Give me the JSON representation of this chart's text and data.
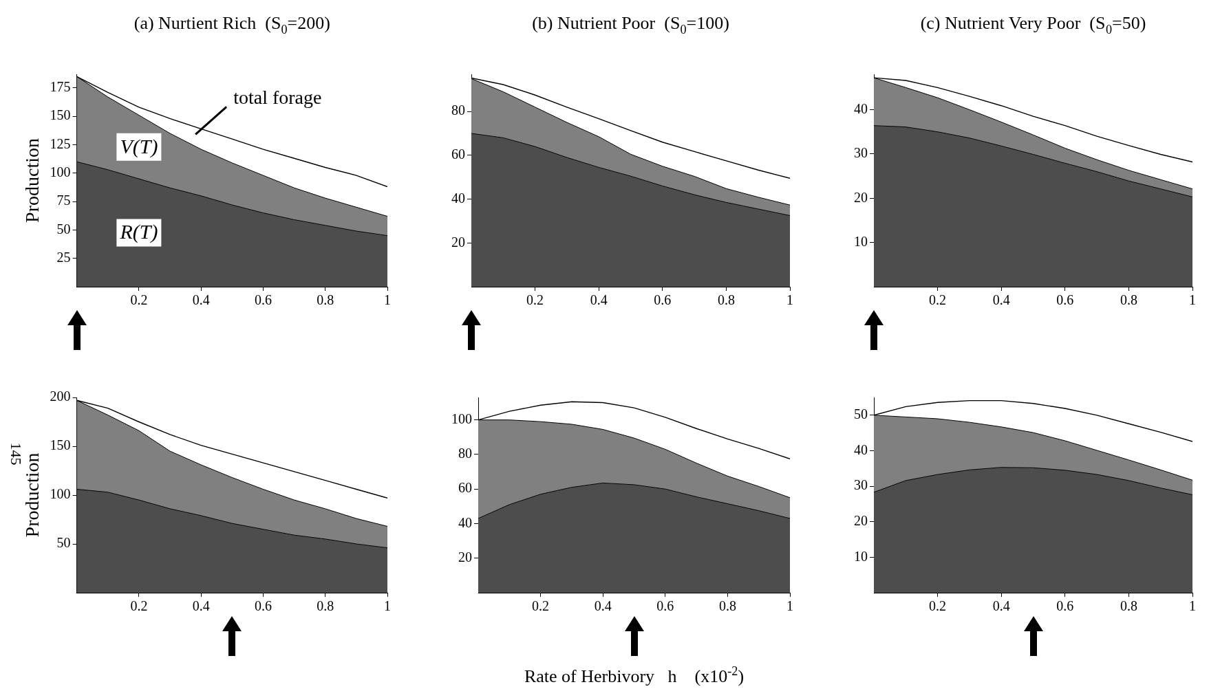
{
  "chart_data": [
    {
      "type": "area",
      "title": "(a) Nurtient Rich  (S$_{0}$=200)",
      "ylabel": "Production",
      "stacked": true,
      "x": [
        0,
        0.1,
        0.2,
        0.3,
        0.4,
        0.5,
        0.6,
        0.7,
        0.8,
        0.9,
        1
      ],
      "xlim": [
        0,
        1
      ],
      "xticks": [
        0.2,
        0.4,
        0.6,
        0.8,
        1
      ],
      "ylim": [
        0,
        187
      ],
      "yticks": [
        25,
        50,
        75,
        100,
        125,
        150,
        175
      ],
      "series": [
        {
          "name": "R(T)",
          "type": "area",
          "color": "#4d4d4d",
          "values": [
            110,
            103,
            95,
            87,
            80,
            72,
            65,
            59,
            54,
            49,
            45
          ]
        },
        {
          "name": "V(T)",
          "type": "area",
          "color": "#808080",
          "values": [
            75,
            64,
            56,
            48,
            41,
            37,
            33,
            28,
            24,
            21,
            17
          ]
        },
        {
          "name": "total forage",
          "type": "line",
          "color": "#000000",
          "values": [
            185,
            171,
            158,
            148,
            139,
            130,
            121,
            113,
            105,
            98,
            88
          ]
        }
      ]
    },
    {
      "type": "area",
      "title": "(b) Nutrient Poor  (S$_{0}$=100)",
      "stacked": true,
      "x": [
        0,
        0.1,
        0.2,
        0.3,
        0.4,
        0.5,
        0.6,
        0.7,
        0.8,
        0.9,
        1
      ],
      "xlim": [
        0,
        1
      ],
      "xticks": [
        0.2,
        0.4,
        0.6,
        0.8,
        1
      ],
      "ylim": [
        0,
        97
      ],
      "yticks": [
        20,
        40,
        60,
        80
      ],
      "series": [
        {
          "type": "area",
          "color": "#4d4d4d",
          "values": [
            70,
            68,
            64,
            59,
            54.5,
            50.5,
            46,
            42,
            38.5,
            35.5,
            32.5
          ]
        },
        {
          "type": "area",
          "color": "#808080",
          "values": [
            25,
            21,
            18,
            16,
            14,
            10,
            9,
            8.4,
            6.3,
            5.4,
            4.8
          ]
        },
        {
          "type": "line",
          "color": "#000000",
          "values": [
            95.3,
            92.3,
            87.5,
            82,
            76.7,
            71.3,
            66,
            61.7,
            57.5,
            53.3,
            49.5
          ]
        }
      ]
    },
    {
      "type": "area",
      "title": "(c) Nutrient Very Poor  (S$_{0}$=50)",
      "stacked": true,
      "x": [
        0,
        0.1,
        0.2,
        0.3,
        0.4,
        0.5,
        0.6,
        0.7,
        0.8,
        0.9,
        1
      ],
      "xlim": [
        0,
        1
      ],
      "xticks": [
        0.2,
        0.4,
        0.6,
        0.8,
        1
      ],
      "ylim": [
        0,
        48
      ],
      "yticks": [
        10,
        20,
        30,
        40
      ],
      "series": [
        {
          "type": "area",
          "color": "#4d4d4d",
          "values": [
            36.4,
            36.1,
            35,
            33.6,
            31.8,
            29.9,
            27.9,
            26,
            23.9,
            22.1,
            20.3
          ]
        },
        {
          "type": "area",
          "color": "#808080",
          "values": [
            10.8,
            8.9,
            7.7,
            6.4,
            5.4,
            4.4,
            3.4,
            2.7,
            2.4,
            2.1,
            1.8
          ]
        },
        {
          "type": "line",
          "color": "#000000",
          "values": [
            47.2,
            46.6,
            45,
            43,
            40.9,
            38.5,
            36.4,
            34,
            31.9,
            29.9,
            28.2
          ]
        }
      ]
    },
    {
      "type": "area",
      "ylabel": "Production",
      "annotations": [
        "145"
      ],
      "stacked": true,
      "x": [
        0,
        0.1,
        0.2,
        0.3,
        0.4,
        0.5,
        0.6,
        0.7,
        0.8,
        0.9,
        1
      ],
      "xlim": [
        0,
        1
      ],
      "xticks": [
        0.2,
        0.4,
        0.6,
        0.8,
        1
      ],
      "ylim": [
        0,
        200
      ],
      "yticks": [
        50,
        100,
        150,
        200
      ],
      "series": [
        {
          "type": "area",
          "color": "#4d4d4d",
          "values": [
            106,
            103,
            95,
            86,
            79,
            71,
            65,
            59,
            55,
            50,
            46
          ]
        },
        {
          "type": "area",
          "color": "#808080",
          "values": [
            91,
            79,
            71,
            59,
            52,
            47,
            41,
            36,
            31,
            26,
            22
          ]
        },
        {
          "type": "line",
          "color": "#000000",
          "values": [
            197,
            189,
            175,
            162,
            151,
            142,
            133,
            124,
            115,
            106,
            97
          ]
        }
      ]
    },
    {
      "type": "area",
      "xlabel": "Rate of Herbivory   h    (x10$^{-2}$)",
      "stacked": true,
      "x": [
        0,
        0.1,
        0.2,
        0.3,
        0.4,
        0.5,
        0.6,
        0.7,
        0.8,
        0.9,
        1
      ],
      "xlim": [
        0,
        1
      ],
      "xticks": [
        0.2,
        0.4,
        0.6,
        0.8,
        1
      ],
      "ylim": [
        0,
        113
      ],
      "yticks": [
        20,
        40,
        60,
        80,
        100
      ],
      "series": [
        {
          "type": "area",
          "color": "#4d4d4d",
          "values": [
            43,
            51,
            57,
            61,
            63.5,
            62.5,
            60,
            55.5,
            51.5,
            47.5,
            43
          ]
        },
        {
          "type": "area",
          "color": "#808080",
          "values": [
            57,
            49,
            42,
            36.5,
            31,
            27,
            23,
            19.5,
            16,
            14,
            12
          ]
        },
        {
          "type": "line",
          "color": "#000000",
          "values": [
            100,
            105,
            108.5,
            110.5,
            110,
            107,
            101.5,
            95,
            89,
            83.5,
            77.5
          ]
        }
      ]
    },
    {
      "type": "area",
      "stacked": true,
      "x": [
        0,
        0.1,
        0.2,
        0.3,
        0.4,
        0.5,
        0.6,
        0.7,
        0.8,
        0.9,
        1
      ],
      "xlim": [
        0,
        1
      ],
      "xticks": [
        0.2,
        0.4,
        0.6,
        0.8,
        1
      ],
      "ylim": [
        0,
        55
      ],
      "yticks": [
        10,
        20,
        30,
        40,
        50
      ],
      "series": [
        {
          "type": "area",
          "color": "#4d4d4d",
          "values": [
            28.3,
            31.6,
            33.3,
            34.6,
            35.3,
            35.2,
            34.5,
            33.3,
            31.6,
            29.5,
            27.6
          ]
        },
        {
          "type": "area",
          "color": "#808080",
          "values": [
            21.7,
            17.9,
            15.7,
            13.4,
            11.4,
            9.9,
            8.3,
            6.8,
            5.8,
            5.1,
            4.1
          ]
        },
        {
          "type": "line",
          "color": "#000000",
          "values": [
            50,
            52.4,
            53.6,
            54.1,
            54.1,
            53.3,
            51.9,
            50,
            47.6,
            45.2,
            42.6
          ]
        }
      ]
    }
  ]
}
